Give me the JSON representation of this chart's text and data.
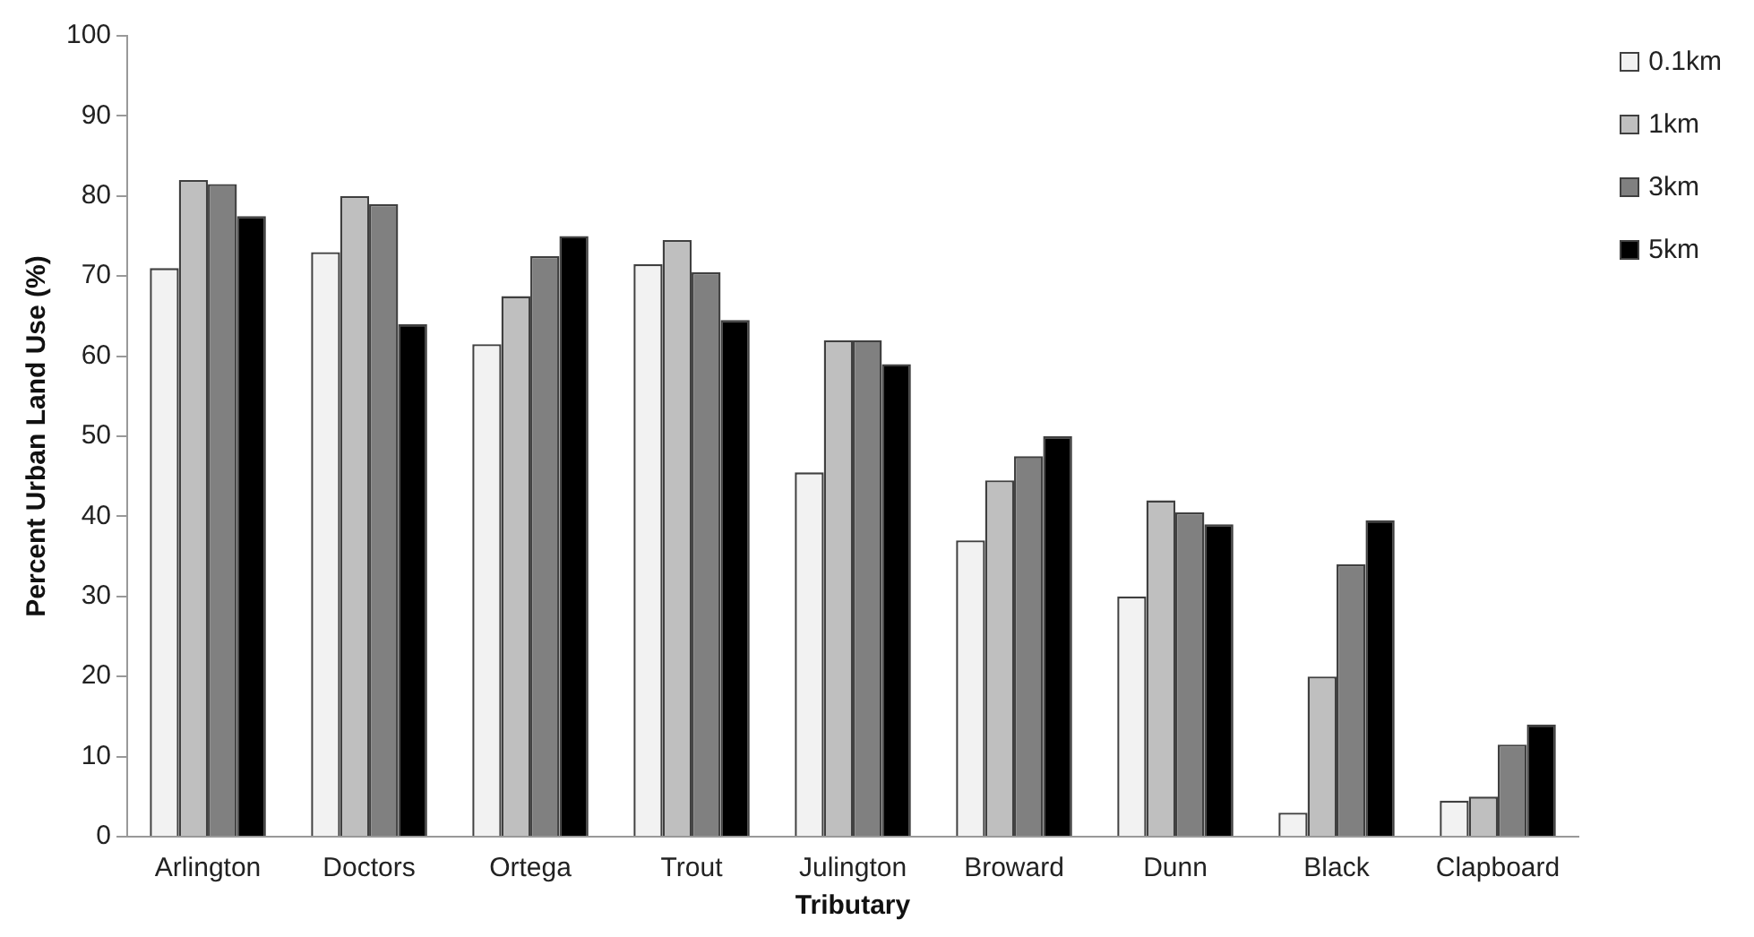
{
  "chart_data": {
    "type": "bar",
    "xlabel": "Tributary",
    "ylabel": "Percent Urban Land Use (%)",
    "categories": [
      "Arlington",
      "Doctors",
      "Ortega",
      "Trout",
      "Julington",
      "Broward",
      "Dunn",
      "Black",
      "Clapboard"
    ],
    "series": [
      {
        "name": "0.1km",
        "color": "#f2f2f2",
        "values": [
          71,
          73,
          61.5,
          71.5,
          45.5,
          37,
          30,
          3,
          4.5
        ]
      },
      {
        "name": "1km",
        "color": "#bfbfbf",
        "values": [
          82,
          80,
          67.5,
          74.5,
          62,
          44.5,
          42,
          20,
          5
        ]
      },
      {
        "name": "3km",
        "color": "#808080",
        "values": [
          81.5,
          79,
          72.5,
          70.5,
          62,
          47.5,
          40.5,
          34,
          11.5
        ]
      },
      {
        "name": "5km",
        "color": "#000000",
        "values": [
          77.5,
          64,
          75,
          64.5,
          59,
          50,
          39,
          39.5,
          14
        ]
      }
    ],
    "ylim": [
      0,
      100
    ],
    "yticks": [
      0,
      10,
      20,
      30,
      40,
      50,
      60,
      70,
      80,
      90,
      100
    ],
    "grid": false,
    "legend": "top right"
  }
}
